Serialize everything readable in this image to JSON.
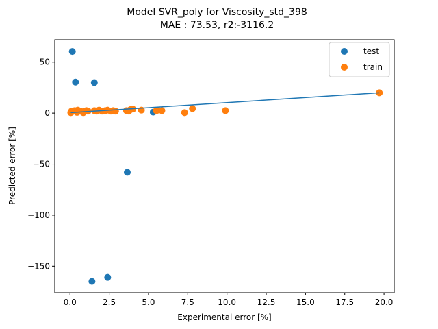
{
  "chart_data": {
    "type": "scatter",
    "title_line1": "Model SVR_poly for Viscosity_std_398",
    "title_line2": "MAE :  73.53, r2:-3116.2",
    "xlabel": "Experimental error [%]",
    "ylabel": "Predicted error [%]",
    "xlim": [
      -0.97,
      20.65
    ],
    "ylim": [
      -176,
      72
    ],
    "xticks": [
      0.0,
      2.5,
      5.0,
      7.5,
      10.0,
      12.5,
      15.0,
      17.5,
      20.0
    ],
    "xtick_labels": [
      "0.0",
      "2.5",
      "5.0",
      "7.5",
      "10.0",
      "12.5",
      "15.0",
      "17.5",
      "20.0"
    ],
    "yticks": [
      50,
      0,
      -50,
      -100,
      -150
    ],
    "ytick_labels": [
      "50",
      "0",
      "−50",
      "−100",
      "−150"
    ],
    "grid": false,
    "legend_position": "top-right",
    "series": [
      {
        "name": "test",
        "color": "#1f77b4",
        "x": [
          0.15,
          0.35,
          1.55,
          3.65,
          5.3,
          1.4,
          2.4
        ],
        "y": [
          60.5,
          30.5,
          30.0,
          -58.0,
          1.0,
          -165.0,
          -161.0
        ]
      },
      {
        "name": "train",
        "color": "#ff7f0e",
        "x": [
          0.05,
          0.1,
          0.15,
          0.3,
          0.45,
          0.5,
          0.6,
          0.7,
          0.85,
          0.95,
          1.05,
          1.15,
          1.55,
          1.7,
          1.85,
          2.05,
          2.25,
          2.4,
          2.6,
          2.75,
          2.9,
          3.6,
          3.75,
          3.85,
          4.0,
          4.55,
          5.5,
          5.6,
          5.85,
          7.3,
          7.8,
          9.9,
          19.7
        ],
        "y": [
          0.5,
          2.0,
          1.5,
          2.5,
          0.8,
          3.0,
          2.2,
          1.8,
          0.5,
          2.0,
          2.5,
          2.0,
          2.5,
          2.0,
          3.0,
          2.0,
          2.5,
          3.0,
          2.0,
          2.5,
          2.0,
          2.5,
          2.0,
          3.5,
          4.0,
          3.0,
          2.5,
          3.0,
          2.5,
          0.5,
          4.5,
          2.5,
          20.0
        ]
      }
    ],
    "fit_line": {
      "color": "#1f77b4",
      "x": [
        0.05,
        19.7
      ],
      "y": [
        0.5,
        20.0
      ]
    }
  }
}
